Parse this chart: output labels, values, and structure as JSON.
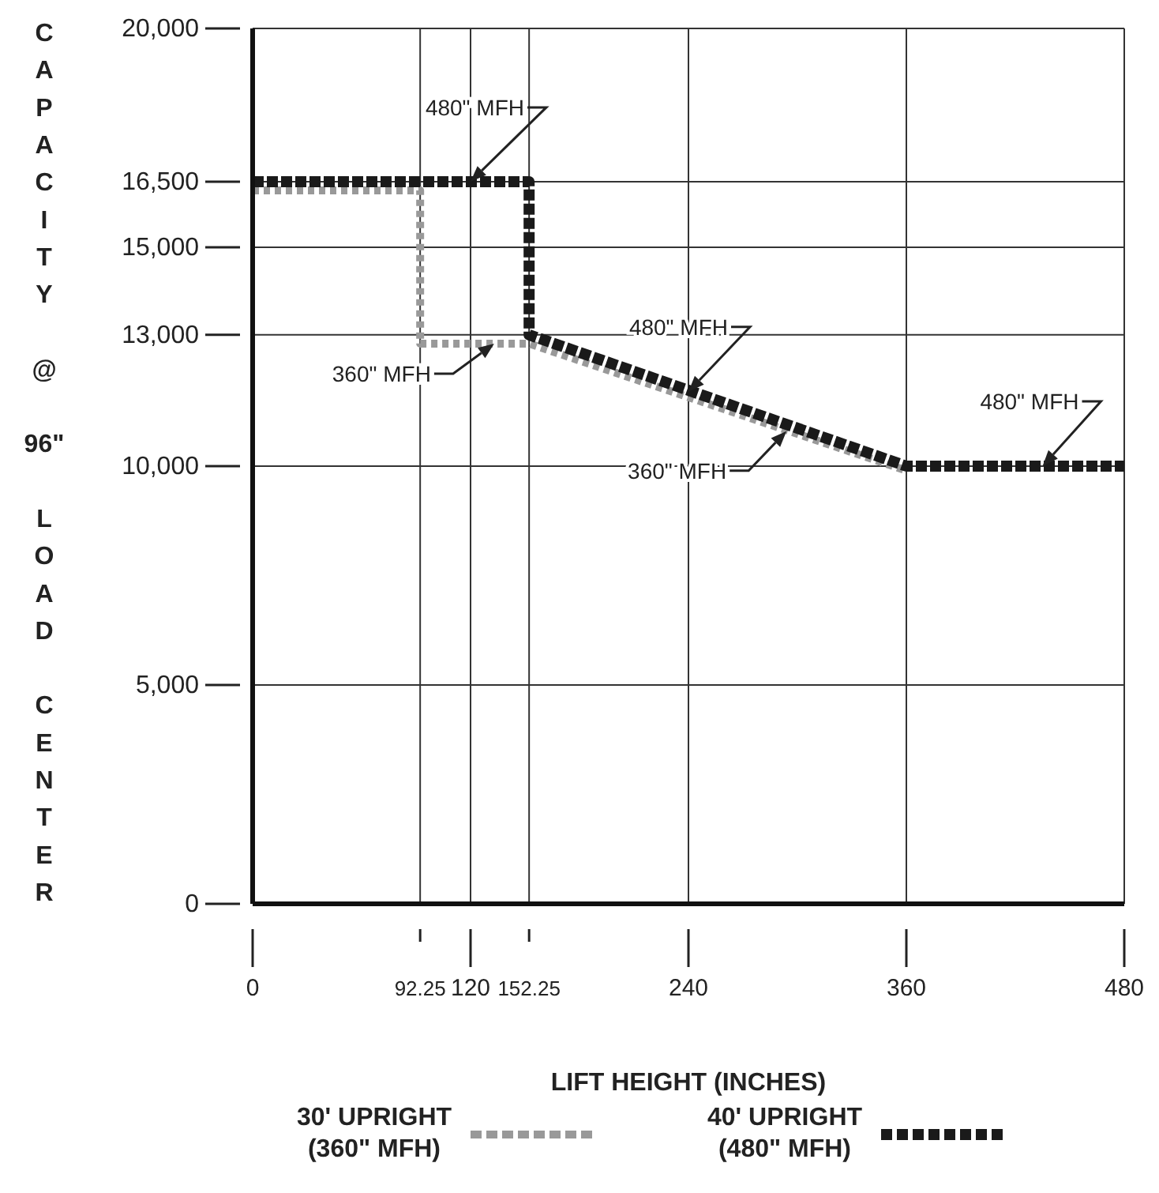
{
  "chart_data": {
    "type": "line",
    "xlabel": "LIFT HEIGHT (INCHES)",
    "ylabel": "CAPACITY @ 96\" LOAD CENTER",
    "xlim": [
      0,
      480
    ],
    "xticks": [
      0,
      92.25,
      120,
      152.25,
      240,
      360,
      480
    ],
    "ylim": [
      0,
      20000
    ],
    "yticks": [
      0,
      {
        "value": 5000,
        "label": "5,000"
      },
      {
        "value": 10000,
        "label": "10,000"
      },
      {
        "value": 13000,
        "label": "13,000"
      },
      {
        "value": 15000,
        "label": "15,000"
      },
      {
        "value": 16500,
        "label": "16,500"
      },
      {
        "value": 20000,
        "label": "20,000"
      }
    ],
    "grid": true,
    "legend": "bottom",
    "marker": "none",
    "series": [
      {
        "name": "30' UPRIGHT (360\" MFH)",
        "color": "#999999",
        "line_style": "dotted",
        "x": [
          0,
          92.25,
          92.25,
          152.25,
          360
        ],
        "values": [
          16300,
          16300,
          12800,
          12800,
          9900
        ]
      },
      {
        "name": "40' UPRIGHT (480\" MFH)",
        "color": "#1a1a1a",
        "line_style": "dashed",
        "x": [
          0,
          152.25,
          152.25,
          360,
          480
        ],
        "values": [
          16500,
          16500,
          13000,
          10000,
          10000
        ]
      }
    ],
    "annotations": [
      {
        "text": "480\" MFH",
        "x": 120,
        "y": 16500
      },
      {
        "text": "360\" MFH",
        "x": 133,
        "y": 12800
      },
      {
        "text": "480\" MFH",
        "x": 240,
        "y": 11700
      },
      {
        "text": "360\" MFH",
        "x": 294,
        "y": 10800
      },
      {
        "text": "480\" MFH",
        "x": 435,
        "y": 10000
      }
    ]
  }
}
